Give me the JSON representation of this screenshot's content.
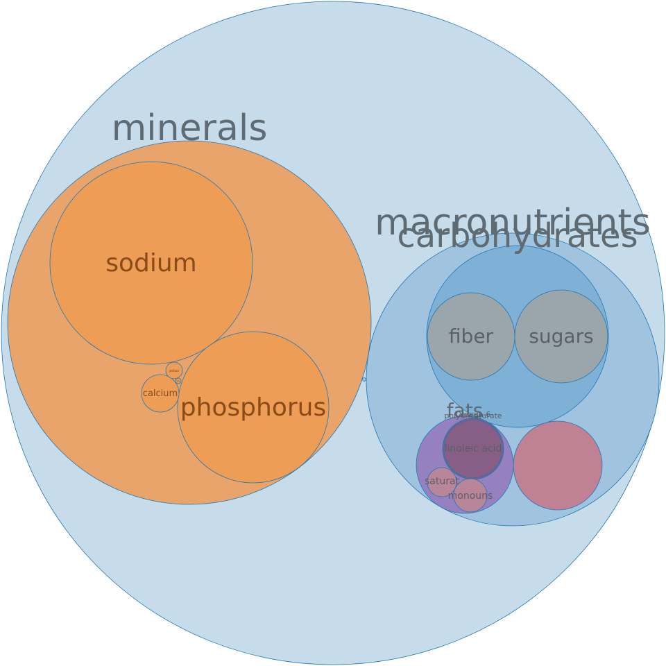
{
  "chart_data": {
    "type": "circle-packing",
    "colors": {
      "root": "#c6dcea",
      "minerals": "#e8a46a",
      "mineral_leaf": "#ed9d55",
      "macronutrients": "#a0c4df",
      "carbohydrates": "#7fb0d6",
      "carb_leaf": "#9aa6ab",
      "fats": "#9580c0",
      "fat_leaf_dark": "#865e86",
      "fat_leaf": "#b98599",
      "protein": "#bf8193",
      "outline": "#1f77b4",
      "dark_text": "#5a6066",
      "mineral_text": "#8a4b18"
    },
    "labels": {
      "minerals": "minerals",
      "sodium": "sodium",
      "phosphorus": "phosphorus",
      "calcium": "calcium",
      "potassium_abbr": "potas",
      "tiny_mineral": "m",
      "macronutrients": "macronutrients",
      "carbohydrates": "carbohydrates",
      "fiber": "fiber",
      "sugars": "sugars",
      "fats": "fats",
      "polyunsaturate": "polyunsaturate",
      "omega6": "Omega-6",
      "linoleic_acid": "linoleic acid",
      "saturated": "saturat",
      "monounsaturated": "monouns"
    }
  }
}
